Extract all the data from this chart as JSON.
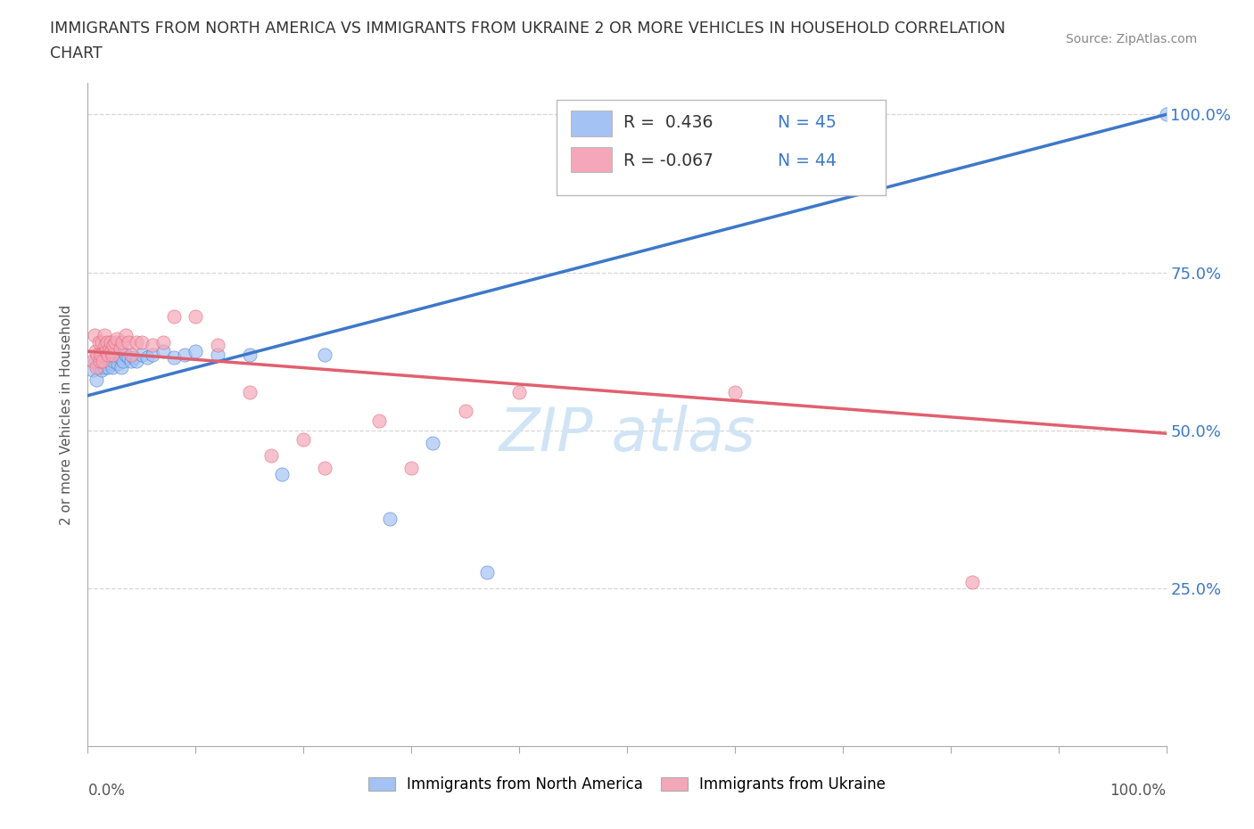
{
  "title_line1": "IMMIGRANTS FROM NORTH AMERICA VS IMMIGRANTS FROM UKRAINE 2 OR MORE VEHICLES IN HOUSEHOLD CORRELATION",
  "title_line2": "CHART",
  "source_text": "Source: ZipAtlas.com",
  "ylabel": "2 or more Vehicles in Household",
  "xlim": [
    0.0,
    1.0
  ],
  "ylim": [
    0.0,
    1.05
  ],
  "ytick_positions": [
    0.25,
    0.5,
    0.75,
    1.0
  ],
  "ytick_labels": [
    "25.0%",
    "50.0%",
    "75.0%",
    "100.0%"
  ],
  "color_blue": "#a4c2f4",
  "color_pink": "#f4a7b9",
  "color_blue_line": "#3d78c9",
  "color_pink_line": "#e06070",
  "color_blue_text": "#3d78c9",
  "watermark_color": "#d0e4f5",
  "background_color": "#ffffff",
  "grid_color": "#cccccc",
  "blue_x": [
    0.005,
    0.007,
    0.008,
    0.01,
    0.01,
    0.012,
    0.013,
    0.013,
    0.015,
    0.015,
    0.016,
    0.017,
    0.018,
    0.019,
    0.02,
    0.021,
    0.022,
    0.023,
    0.024,
    0.025,
    0.027,
    0.028,
    0.03,
    0.031,
    0.033,
    0.035,
    0.038,
    0.04,
    0.043,
    0.045,
    0.05,
    0.055,
    0.06,
    0.07,
    0.08,
    0.09,
    0.1,
    0.12,
    0.15,
    0.18,
    0.22,
    0.28,
    0.32,
    0.37,
    1.0
  ],
  "blue_y": [
    0.595,
    0.61,
    0.58,
    0.62,
    0.6,
    0.615,
    0.595,
    0.61,
    0.6,
    0.62,
    0.605,
    0.61,
    0.615,
    0.6,
    0.61,
    0.615,
    0.605,
    0.6,
    0.61,
    0.62,
    0.615,
    0.605,
    0.615,
    0.6,
    0.61,
    0.62,
    0.615,
    0.61,
    0.615,
    0.61,
    0.62,
    0.615,
    0.62,
    0.625,
    0.615,
    0.62,
    0.625,
    0.62,
    0.62,
    0.43,
    0.62,
    0.36,
    0.48,
    0.275,
    1.0
  ],
  "pink_x": [
    0.005,
    0.006,
    0.007,
    0.008,
    0.009,
    0.01,
    0.011,
    0.012,
    0.013,
    0.014,
    0.015,
    0.016,
    0.017,
    0.018,
    0.019,
    0.02,
    0.021,
    0.022,
    0.023,
    0.024,
    0.025,
    0.027,
    0.03,
    0.032,
    0.035,
    0.038,
    0.04,
    0.045,
    0.05,
    0.06,
    0.07,
    0.08,
    0.1,
    0.12,
    0.15,
    0.17,
    0.2,
    0.22,
    0.27,
    0.3,
    0.35,
    0.4,
    0.6,
    0.82
  ],
  "pink_y": [
    0.61,
    0.65,
    0.625,
    0.6,
    0.62,
    0.64,
    0.61,
    0.62,
    0.64,
    0.61,
    0.65,
    0.635,
    0.625,
    0.64,
    0.62,
    0.63,
    0.64,
    0.625,
    0.62,
    0.635,
    0.64,
    0.645,
    0.63,
    0.64,
    0.65,
    0.64,
    0.62,
    0.64,
    0.64,
    0.635,
    0.64,
    0.68,
    0.68,
    0.635,
    0.56,
    0.46,
    0.485,
    0.44,
    0.515,
    0.44,
    0.53,
    0.56,
    0.56,
    0.26
  ],
  "blue_line_x0": 0.0,
  "blue_line_y0": 0.555,
  "blue_line_x1": 1.0,
  "blue_line_y1": 1.0,
  "pink_line_x0": 0.0,
  "pink_line_y0": 0.625,
  "pink_line_x1": 1.0,
  "pink_line_y1": 0.495
}
